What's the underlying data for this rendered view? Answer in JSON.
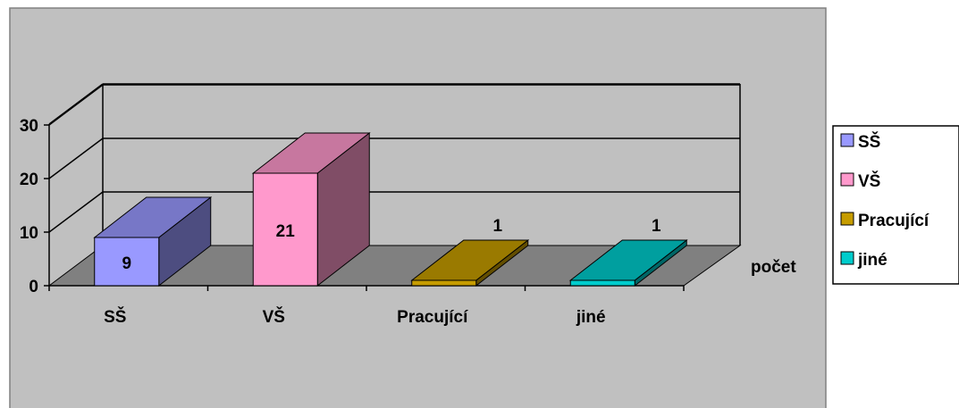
{
  "chart_data": {
    "type": "bar",
    "categories": [
      "SŠ",
      "VŠ",
      "Pracující",
      "jiné"
    ],
    "series": [
      {
        "name": "",
        "values": [
          9,
          21,
          1,
          1
        ]
      }
    ],
    "value_labels": [
      "9",
      "21",
      "1",
      "1"
    ],
    "ylim": [
      0,
      30
    ],
    "yticks": [
      0,
      10,
      20,
      30
    ],
    "ytick_labels": [
      "0",
      "10",
      "20",
      "30"
    ],
    "depth_label": "počet",
    "legend": {
      "placement": "right",
      "entries": [
        "SŠ",
        "VŠ",
        "Pracující",
        "jiné"
      ]
    },
    "grid": true,
    "colors": {
      "plot_area": "#c0c0c0",
      "floor": "#808080",
      "bars": [
        "#9999ff",
        "#ff99cc",
        "#c69c00",
        "#00cccc"
      ]
    }
  }
}
